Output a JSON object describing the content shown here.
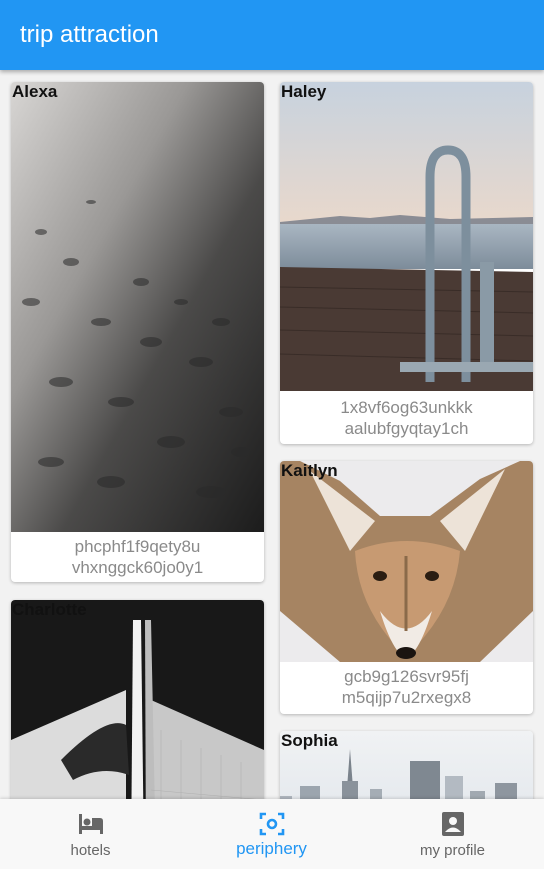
{
  "appbar": {
    "title": "trip attraction"
  },
  "cards": [
    {
      "name": "Alexa",
      "caption_line1": "phcphf1f9qety8u",
      "caption_line2": "vhxnggck60jo0y1",
      "image": "wet-sand-photo"
    },
    {
      "name": "Haley",
      "caption_line1": "1x8vf6og63unkkk",
      "caption_line2": "aalubfgyqtay1ch",
      "image": "pier-ladder-photo"
    },
    {
      "name": "Kaitlyn",
      "caption_line1": "gcb9g126svr95fj",
      "caption_line2": "m5qijp7u2rxegx8",
      "image": "coyote-photo"
    },
    {
      "name": "Charlotte",
      "caption_line1": "",
      "caption_line2": "",
      "image": "architecture-photo"
    },
    {
      "name": "Sophia",
      "caption_line1": "",
      "caption_line2": "",
      "image": "city-skyline-photo"
    }
  ],
  "bottom_nav": {
    "items": [
      {
        "label": "hotels",
        "icon": "hotel-icon",
        "active": false
      },
      {
        "label": "periphery",
        "icon": "center-focus-icon",
        "active": true
      },
      {
        "label": "my profile",
        "icon": "account-box-icon",
        "active": false
      }
    ]
  },
  "colors": {
    "primary": "#2196f3",
    "caption": "#8a8a8a",
    "inactive": "#666666"
  }
}
